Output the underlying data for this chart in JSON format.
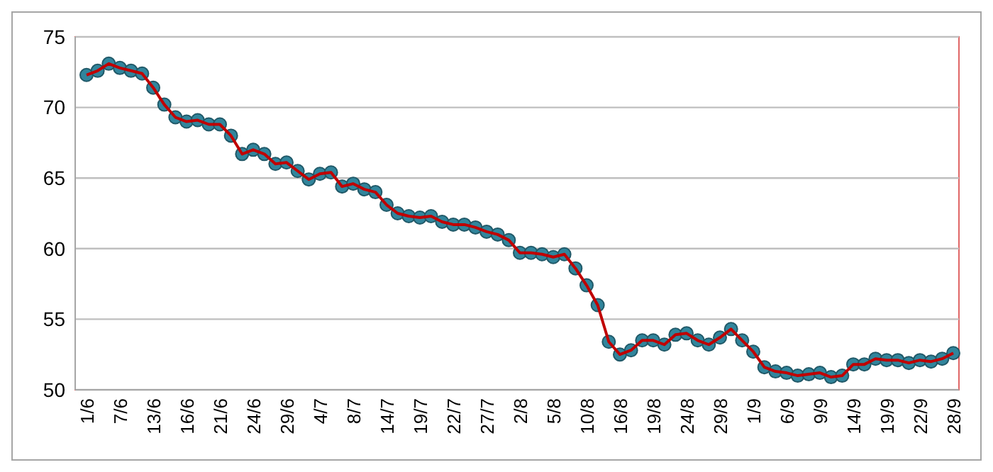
{
  "chart_data": {
    "type": "line",
    "categories": [
      "1/6",
      null,
      null,
      "7/6",
      null,
      null,
      "13/6",
      null,
      null,
      "16/6",
      null,
      null,
      "21/6",
      null,
      null,
      "24/6",
      null,
      null,
      "29/6",
      null,
      null,
      "4/7",
      null,
      null,
      "8/7",
      null,
      null,
      "14/7",
      null,
      null,
      "19/7",
      null,
      null,
      "22/7",
      null,
      null,
      "27/7",
      null,
      null,
      "2/8",
      null,
      null,
      "5/8",
      null,
      null,
      "10/8",
      null,
      null,
      "16/8",
      null,
      null,
      "19/8",
      null,
      null,
      "24/8",
      null,
      null,
      "29/8",
      null,
      null,
      "1/9",
      null,
      null,
      "6/9",
      null,
      null,
      "9/9",
      null,
      null,
      "14/9",
      null,
      null,
      "19/9",
      null,
      null,
      "22/9",
      null,
      null,
      "28/9"
    ],
    "series": [
      {
        "color": "#c00000",
        "values": [
          72.3,
          72.6,
          73.1,
          72.8,
          72.6,
          72.4,
          71.4,
          70.2,
          69.3,
          69.0,
          69.1,
          68.8,
          68.8,
          68.0,
          66.7,
          67.0,
          66.7,
          66.0,
          66.1,
          65.5,
          64.9,
          65.3,
          65.4,
          64.4,
          64.6,
          64.2,
          64.0,
          63.1,
          62.5,
          62.3,
          62.2,
          62.3,
          61.9,
          61.7,
          61.7,
          61.5,
          61.2,
          61.0,
          60.6,
          59.7,
          59.7,
          59.6,
          59.4,
          59.6,
          58.6,
          57.4,
          56.0,
          53.4,
          52.5,
          52.8,
          53.5,
          53.5,
          53.2,
          53.9,
          54.0,
          53.5,
          53.2,
          53.7,
          54.3,
          53.5,
          52.7,
          51.6,
          51.3,
          51.2,
          51.0,
          51.1,
          51.2,
          50.9,
          51.0,
          51.8,
          51.8,
          52.2,
          52.1,
          52.1,
          51.9,
          52.1,
          52.0,
          52.2,
          52.6
        ]
      }
    ],
    "ylim": [
      50,
      75
    ],
    "yticks": [
      50,
      55,
      60,
      65,
      70,
      75
    ],
    "grid": "y",
    "marker": "circle",
    "line_style": "solid"
  }
}
